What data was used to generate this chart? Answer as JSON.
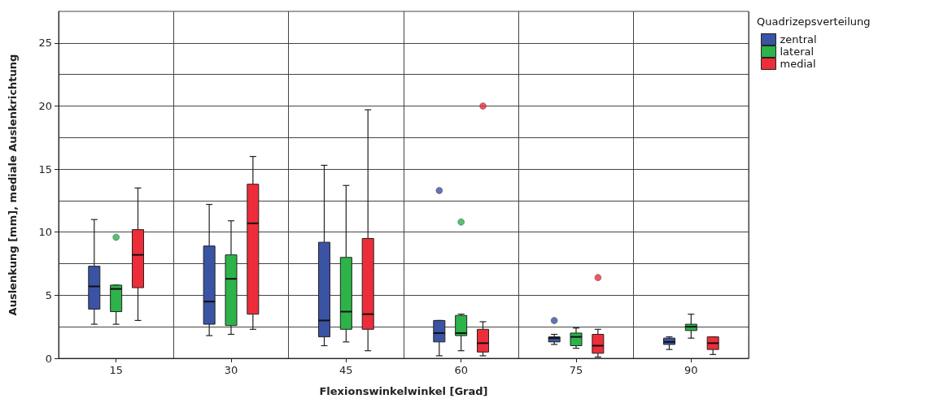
{
  "chart_data": {
    "type": "box",
    "xlabel": "Flexionswinkelwinkel [Grad]",
    "ylabel": "Auslenkung [mm], mediale Auslenkrichtung",
    "legend_title": "Quadrizepsverteilung",
    "categories": [
      "15",
      "30",
      "45",
      "60",
      "75",
      "90"
    ],
    "ylim": [
      0,
      27.5
    ],
    "yticks": [
      0,
      {
        "value": 2.5,
        "label": null
      },
      5,
      {
        "value": 7.5,
        "label": null
      },
      10,
      {
        "value": 12.5,
        "label": null
      },
      15,
      {
        "value": 17.5,
        "label": null
      },
      20,
      {
        "value": 22.5,
        "label": null
      },
      25
    ],
    "grid": true,
    "legend": "top right",
    "series": [
      {
        "name": "zentral",
        "color": "#3a53a4",
        "boxes": [
          {
            "low": 2.7,
            "q1": 3.9,
            "median": 5.7,
            "q3": 7.3,
            "high": 11.0
          },
          {
            "low": 1.8,
            "q1": 2.7,
            "median": 4.5,
            "q3": 8.9,
            "high": 12.2
          },
          {
            "low": 1.0,
            "q1": 1.7,
            "median": 3.0,
            "q3": 9.2,
            "high": 15.3
          },
          {
            "low": 0.2,
            "q1": 1.3,
            "median": 2.0,
            "q3": 3.0,
            "high": 3.0,
            "outliers": [
              13.3
            ]
          },
          {
            "low": 1.1,
            "q1": 1.3,
            "median": 1.6,
            "q3": 1.7,
            "high": 1.9,
            "outliers": [
              3.0
            ]
          },
          {
            "low": 0.7,
            "q1": 1.1,
            "median": 1.3,
            "q3": 1.6,
            "high": 1.7
          }
        ]
      },
      {
        "name": "lateral",
        "color": "#2db34a",
        "boxes": [
          {
            "low": 2.7,
            "q1": 3.7,
            "median": 5.5,
            "q3": 5.8,
            "high": 5.8,
            "outliers": [
              9.6
            ]
          },
          {
            "low": 1.9,
            "q1": 2.6,
            "median": 6.3,
            "q3": 8.2,
            "high": 10.9
          },
          {
            "low": 1.3,
            "q1": 2.3,
            "median": 3.7,
            "q3": 8.0,
            "high": 13.7
          },
          {
            "low": 0.6,
            "q1": 1.8,
            "median": 2.0,
            "q3": 3.4,
            "high": 3.5,
            "outliers": [
              10.8
            ]
          },
          {
            "low": 0.8,
            "q1": 1.0,
            "median": 1.7,
            "q3": 2.0,
            "high": 2.4
          },
          {
            "low": 1.6,
            "q1": 2.2,
            "median": 2.5,
            "q3": 2.7,
            "high": 3.5
          }
        ]
      },
      {
        "name": "medial",
        "color": "#ee2d3a",
        "boxes": [
          {
            "low": 3.0,
            "q1": 5.6,
            "median": 8.2,
            "q3": 10.2,
            "high": 13.5
          },
          {
            "low": 2.3,
            "q1": 3.5,
            "median": 10.7,
            "q3": 13.8,
            "high": 16.0
          },
          {
            "low": 0.6,
            "q1": 2.3,
            "median": 3.5,
            "q3": 9.5,
            "high": 19.7
          },
          {
            "low": 0.2,
            "q1": 0.5,
            "median": 1.2,
            "q3": 2.3,
            "high": 2.9,
            "outliers": [
              20.0
            ]
          },
          {
            "low": 0.1,
            "q1": 0.4,
            "median": 1.0,
            "q3": 1.9,
            "high": 2.3,
            "outliers": [
              6.4
            ]
          },
          {
            "low": 0.3,
            "q1": 0.7,
            "median": 1.2,
            "q3": 1.7,
            "high": 1.7
          }
        ]
      }
    ]
  }
}
